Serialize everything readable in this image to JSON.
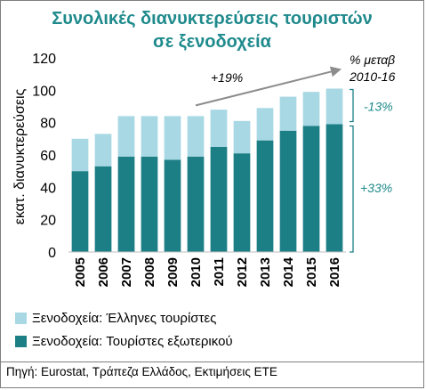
{
  "title_line1": "Συνολικές διανυκτερεύσεις τουριστών",
  "title_line2": "σε ξενοδοχεία",
  "source": "Πηγή: Eurostat, Τράπεζα Ελλάδος, Εκτιμήσεις ΕΤΕ",
  "annotations": {
    "arrow_label": "+19%",
    "pct_change_line1": "% μεταβ",
    "pct_change_line2": "2010-16",
    "domestic_change": "-13%",
    "foreign_change": "+33%"
  },
  "colors": {
    "domestic": "#a8d8e4",
    "foreign": "#1d7f86",
    "arrow": "#8c8c8c",
    "bracket": "#1d7f86"
  },
  "chart_data": {
    "type": "bar",
    "stacked": true,
    "categories": [
      "2005",
      "2006",
      "2007",
      "2008",
      "2009",
      "2010",
      "2011",
      "2012",
      "2013",
      "2014",
      "2015",
      "2016"
    ],
    "series": [
      {
        "name": "Ξενοδοχεία: Τουρίστες εξωτερικού",
        "values": [
          50,
          53,
          59,
          59,
          57,
          59,
          65,
          61,
          69,
          75,
          78,
          79
        ]
      },
      {
        "name": "Ξενοδοχεία: Έλληνες τουρίστες",
        "values": [
          20,
          20,
          25,
          25,
          27,
          25,
          23,
          20,
          20,
          21,
          21,
          22
        ]
      }
    ],
    "ylabel": "εκατ. διανυκτερεύσεις",
    "ylim": [
      0,
      120
    ],
    "yticks": [
      0,
      20,
      40,
      60,
      80,
      100,
      120
    ],
    "grid": false,
    "legend_position": "bottom-left"
  }
}
